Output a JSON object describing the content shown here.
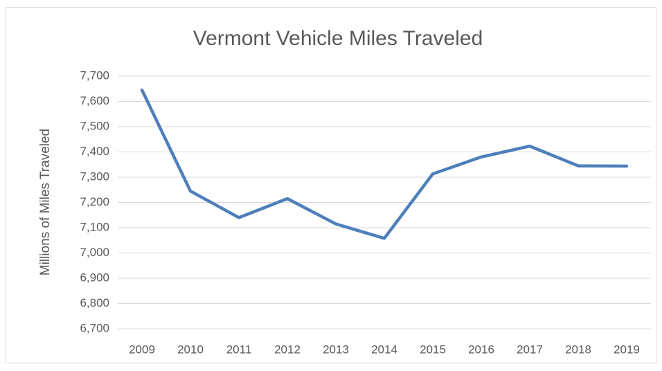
{
  "chart_data": {
    "type": "line",
    "title": "Vermont Vehicle Miles Traveled",
    "y_label": "Millions of Miles Traveled",
    "categories": [
      "2009",
      "2010",
      "2011",
      "2012",
      "2013",
      "2014",
      "2015",
      "2016",
      "2017",
      "2018",
      "2019"
    ],
    "series": [
      {
        "name": "Vehicle Miles Traveled",
        "color": "#4f7fbb",
        "values": [
          7645,
          7245,
          7140,
          7215,
          7115,
          7058,
          7313,
          7380,
          7423,
          7345,
          7344
        ]
      }
    ],
    "ylim": [
      6700,
      7700
    ],
    "yticks": [
      {
        "value": 6700,
        "label": "6,700"
      },
      {
        "value": 6800,
        "label": "6,800"
      },
      {
        "value": 6900,
        "label": "6,900"
      },
      {
        "value": 7000,
        "label": "7,000"
      },
      {
        "value": 7100,
        "label": "7,100"
      },
      {
        "value": 7200,
        "label": "7,200"
      },
      {
        "value": 7300,
        "label": "7,300"
      },
      {
        "value": 7400,
        "label": "7,400"
      },
      {
        "value": 7500,
        "label": "7,500"
      },
      {
        "value": 7600,
        "label": "7,600"
      },
      {
        "value": 7700,
        "label": "7,700"
      }
    ],
    "grid": true
  }
}
